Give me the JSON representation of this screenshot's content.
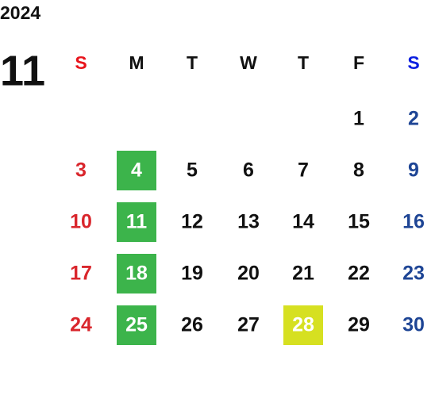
{
  "year": "2024",
  "month": "11",
  "weekdays": [
    "S",
    "M",
    "T",
    "W",
    "T",
    "F",
    "S"
  ],
  "header_colors": [
    "#e8141c",
    "#111111",
    "#111111",
    "#111111",
    "#111111",
    "#111111",
    "#0a1ee0"
  ],
  "day_colors": [
    "#d9262c",
    "#111111",
    "#111111",
    "#111111",
    "#111111",
    "#111111",
    "#1e4595"
  ],
  "weeks": [
    [
      null,
      null,
      null,
      null,
      null,
      {
        "day": "1"
      },
      {
        "day": "2"
      }
    ],
    [
      {
        "day": "3"
      },
      {
        "day": "4",
        "background": "#3cb44b"
      },
      {
        "day": "5"
      },
      {
        "day": "6"
      },
      {
        "day": "7"
      },
      {
        "day": "8"
      },
      {
        "day": "9"
      }
    ],
    [
      {
        "day": "10"
      },
      {
        "day": "11",
        "background": "#3cb44b"
      },
      {
        "day": "12"
      },
      {
        "day": "13"
      },
      {
        "day": "14"
      },
      {
        "day": "15"
      },
      {
        "day": "16"
      }
    ],
    [
      {
        "day": "17"
      },
      {
        "day": "18",
        "background": "#3cb44b"
      },
      {
        "day": "19"
      },
      {
        "day": "20"
      },
      {
        "day": "21"
      },
      {
        "day": "22"
      },
      {
        "day": "23"
      }
    ],
    [
      {
        "day": "24"
      },
      {
        "day": "25",
        "background": "#3cb44b"
      },
      {
        "day": "26"
      },
      {
        "day": "27"
      },
      {
        "day": "28",
        "background": "#d6e021"
      },
      {
        "day": "29"
      },
      {
        "day": "30"
      }
    ]
  ]
}
